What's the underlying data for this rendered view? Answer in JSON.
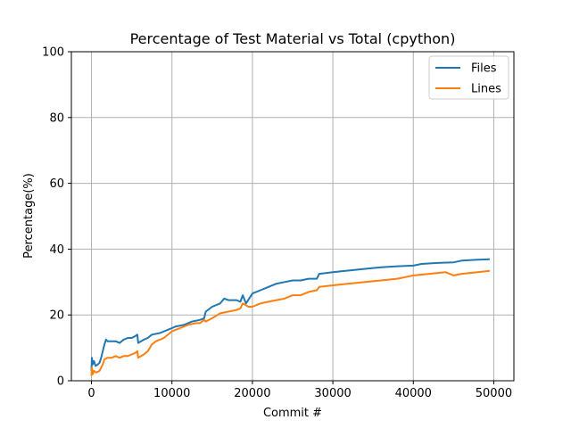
{
  "chart_data": {
    "type": "line",
    "title": "Percentage of Test Material vs Total (cpython)",
    "xlabel": "Commit #",
    "ylabel": "Percentage(%)",
    "xlim": [
      -2500,
      52500
    ],
    "ylim": [
      0,
      100
    ],
    "xticks": [
      0,
      10000,
      20000,
      30000,
      40000,
      50000
    ],
    "yticks": [
      0,
      20,
      40,
      60,
      80,
      100
    ],
    "grid": true,
    "legend_position": "top-right",
    "series": [
      {
        "name": "Files",
        "color": "#1f77b4",
        "points": [
          [
            0,
            3
          ],
          [
            50,
            7
          ],
          [
            150,
            5
          ],
          [
            300,
            6
          ],
          [
            500,
            4.5
          ],
          [
            800,
            5
          ],
          [
            1000,
            5.5
          ],
          [
            1200,
            7
          ],
          [
            1400,
            9
          ],
          [
            1600,
            11
          ],
          [
            1800,
            12.5
          ],
          [
            2000,
            12
          ],
          [
            2500,
            12
          ],
          [
            3000,
            12
          ],
          [
            3500,
            11.5
          ],
          [
            4000,
            12.5
          ],
          [
            4500,
            13
          ],
          [
            5000,
            13
          ],
          [
            5400,
            13.5
          ],
          [
            5700,
            14
          ],
          [
            5800,
            11.5
          ],
          [
            6500,
            12.5
          ],
          [
            7000,
            13
          ],
          [
            7500,
            14
          ],
          [
            8500,
            14.5
          ],
          [
            9500,
            15.5
          ],
          [
            10000,
            16
          ],
          [
            10500,
            16.5
          ],
          [
            11500,
            17
          ],
          [
            12500,
            18
          ],
          [
            13500,
            18.5
          ],
          [
            14000,
            19
          ],
          [
            14200,
            21
          ],
          [
            15000,
            22.5
          ],
          [
            16000,
            23.5
          ],
          [
            16500,
            25
          ],
          [
            17000,
            24.5
          ],
          [
            18000,
            24.5
          ],
          [
            18500,
            24
          ],
          [
            18800,
            26
          ],
          [
            19200,
            23.5
          ],
          [
            20000,
            26.5
          ],
          [
            21000,
            27.5
          ],
          [
            22000,
            28.5
          ],
          [
            23000,
            29.5
          ],
          [
            24000,
            30
          ],
          [
            25000,
            30.5
          ],
          [
            26000,
            30.5
          ],
          [
            27000,
            31
          ],
          [
            28000,
            31
          ],
          [
            28300,
            32.5
          ],
          [
            30000,
            33
          ],
          [
            32000,
            33.5
          ],
          [
            34000,
            34
          ],
          [
            36000,
            34.5
          ],
          [
            38000,
            34.8
          ],
          [
            40000,
            35
          ],
          [
            41000,
            35.5
          ],
          [
            43000,
            35.8
          ],
          [
            45000,
            36
          ],
          [
            46000,
            36.5
          ],
          [
            48000,
            36.8
          ],
          [
            49500,
            36.9
          ]
        ]
      },
      {
        "name": "Lines",
        "color": "#ff7f0e",
        "points": [
          [
            0,
            1.5
          ],
          [
            50,
            4
          ],
          [
            150,
            2
          ],
          [
            300,
            3
          ],
          [
            600,
            2.5
          ],
          [
            1000,
            3
          ],
          [
            1200,
            4
          ],
          [
            1400,
            5
          ],
          [
            1600,
            6.5
          ],
          [
            2000,
            7
          ],
          [
            2500,
            7
          ],
          [
            3000,
            7.5
          ],
          [
            3500,
            7
          ],
          [
            4000,
            7.5
          ],
          [
            4500,
            7.5
          ],
          [
            5000,
            8
          ],
          [
            5500,
            8.5
          ],
          [
            5700,
            9
          ],
          [
            5800,
            7
          ],
          [
            6500,
            8
          ],
          [
            7000,
            9
          ],
          [
            7500,
            11
          ],
          [
            8000,
            12
          ],
          [
            8500,
            12.5
          ],
          [
            9000,
            13
          ],
          [
            10000,
            15
          ],
          [
            11000,
            16
          ],
          [
            12000,
            17
          ],
          [
            13000,
            17.5
          ],
          [
            13500,
            17.5
          ],
          [
            14000,
            18.5
          ],
          [
            14200,
            18
          ],
          [
            15000,
            19
          ],
          [
            16000,
            20.5
          ],
          [
            17000,
            21
          ],
          [
            18000,
            21.5
          ],
          [
            18500,
            22
          ],
          [
            18800,
            23.5
          ],
          [
            19500,
            22.5
          ],
          [
            20000,
            22.5
          ],
          [
            21000,
            23.5
          ],
          [
            22000,
            24
          ],
          [
            23000,
            24.5
          ],
          [
            24000,
            25
          ],
          [
            24500,
            25.5
          ],
          [
            25000,
            26
          ],
          [
            26000,
            26
          ],
          [
            27000,
            27
          ],
          [
            28000,
            27.5
          ],
          [
            28300,
            28.5
          ],
          [
            30000,
            29
          ],
          [
            32000,
            29.5
          ],
          [
            34000,
            30
          ],
          [
            36000,
            30.5
          ],
          [
            38000,
            31
          ],
          [
            39000,
            31.5
          ],
          [
            40000,
            32
          ],
          [
            42000,
            32.5
          ],
          [
            44000,
            33
          ],
          [
            45000,
            32
          ],
          [
            46000,
            32.5
          ],
          [
            48000,
            33
          ],
          [
            49500,
            33.4
          ]
        ]
      }
    ]
  }
}
